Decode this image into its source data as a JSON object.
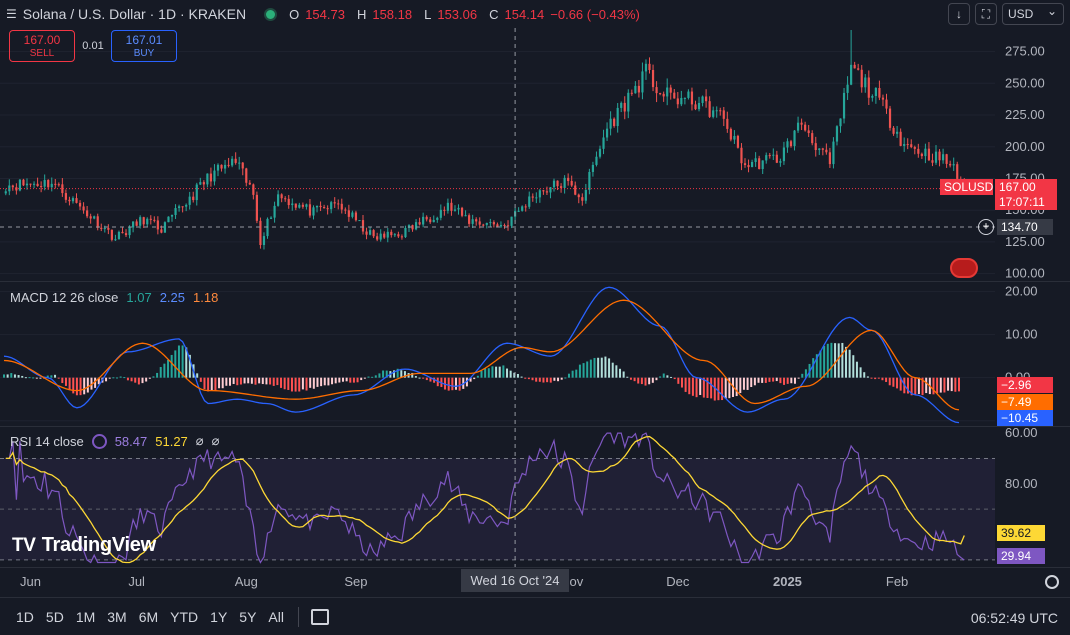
{
  "header": {
    "menu_icon": "hamburger-icon",
    "title": "Solana / U.S. Dollar · 1D · KRAKEN",
    "open_label": "O",
    "open": "154.73",
    "high_label": "H",
    "high": "158.18",
    "low_label": "L",
    "low": "153.06",
    "close_label": "C",
    "close": "154.14",
    "change": "−0.66 (−0.43%)"
  },
  "trade": {
    "sell_price": "167.00",
    "sell_label": "SELL",
    "spread": "0.01",
    "buy_price": "167.01",
    "buy_label": "BUY"
  },
  "toolbar": {
    "currency": "USD",
    "download_icon": "download-icon",
    "fullscreen_icon": "fullscreen-icon"
  },
  "indicators": {
    "macd_name": "MACD 12 26 close",
    "macd_hist": "1.07",
    "macd_line": "2.25",
    "macd_signal": "1.18",
    "rsi_name": "RSI 14 close",
    "rsi_value": "58.47",
    "rsi_ma": "51.27",
    "rsi_extra1": "⌀",
    "rsi_extra2": "⌀"
  },
  "price_labels": {
    "symbol": "SOLUSD",
    "last": "167.00",
    "countdown": "17:07:11",
    "crosshair": "134.70",
    "macd_hist": "−2.96",
    "macd_signal": "−7.49",
    "macd_line": "−10.45",
    "rsi_ma": "39.62",
    "rsi": "29.94"
  },
  "crosshair_date": "Wed 16 Oct '24",
  "brand": "TradingView",
  "timeframes": [
    "1D",
    "5D",
    "1M",
    "3M",
    "6M",
    "YTD",
    "1Y",
    "5Y",
    "All"
  ],
  "clock": "06:52:49 UTC",
  "colors": {
    "up": "#26a69a",
    "down": "#ef5350",
    "macd_line": "#2962ff",
    "macd_signal": "#ff6d00",
    "rsi": "#7e57c2",
    "rsi_ma": "#fdd835",
    "bg": "#161a25"
  },
  "chart_data": [
    {
      "type": "candlestick",
      "title": "Solana / U.S. Dollar · 1D · KRAKEN",
      "x_ticks": [
        "Jun",
        "Jul",
        "Aug",
        "Sep",
        "Oct",
        "Nov",
        "Dec",
        "2025",
        "Feb"
      ],
      "y_ticks": [
        100,
        125,
        150,
        175,
        200,
        225,
        250,
        275
      ],
      "ylim": [
        95,
        292
      ],
      "axis_labels": [
        "100.00",
        "125.00",
        "150.00",
        "175.00",
        "200.00",
        "225.00",
        "250.00",
        "275.00"
      ],
      "anchors": [
        {
          "date": "2024-05-27",
          "close": 170
        },
        {
          "date": "2024-06-07",
          "close": 172
        },
        {
          "date": "2024-06-25",
          "close": 128
        },
        {
          "date": "2024-07-03",
          "close": 143
        },
        {
          "date": "2024-07-08",
          "close": 135
        },
        {
          "date": "2024-07-22",
          "close": 178
        },
        {
          "date": "2024-07-29",
          "close": 188
        },
        {
          "date": "2024-08-03",
          "close": 162
        },
        {
          "date": "2024-08-05",
          "close": 126
        },
        {
          "date": "2024-08-10",
          "close": 162
        },
        {
          "date": "2024-08-20",
          "close": 148
        },
        {
          "date": "2024-08-27",
          "close": 155
        },
        {
          "date": "2024-09-06",
          "close": 128
        },
        {
          "date": "2024-09-14",
          "close": 132
        },
        {
          "date": "2024-09-27",
          "close": 153
        },
        {
          "date": "2024-10-03",
          "close": 142
        },
        {
          "date": "2024-10-13",
          "close": 138
        },
        {
          "date": "2024-10-22",
          "close": 164
        },
        {
          "date": "2024-10-30",
          "close": 172
        },
        {
          "date": "2024-11-04",
          "close": 160
        },
        {
          "date": "2024-11-11",
          "close": 215
        },
        {
          "date": "2024-11-22",
          "close": 258
        },
        {
          "date": "2024-11-27",
          "close": 240
        },
        {
          "date": "2024-12-07",
          "close": 235
        },
        {
          "date": "2024-12-14",
          "close": 222
        },
        {
          "date": "2024-12-20",
          "close": 185
        },
        {
          "date": "2024-12-30",
          "close": 192
        },
        {
          "date": "2025-01-05",
          "close": 219
        },
        {
          "date": "2025-01-13",
          "close": 186
        },
        {
          "date": "2025-01-19",
          "close": 262
        },
        {
          "date": "2025-01-27",
          "close": 236
        },
        {
          "date": "2025-02-03",
          "close": 202
        },
        {
          "date": "2025-02-09",
          "close": 195
        },
        {
          "date": "2025-02-16",
          "close": 187
        },
        {
          "date": "2025-02-20",
          "close": 167
        }
      ],
      "spike_high": {
        "date": "2025-01-19",
        "high": 292
      },
      "last_close": 167.0
    },
    {
      "type": "line",
      "title": "MACD 12 26 close",
      "y_ticks": [
        -10,
        0,
        10,
        20
      ],
      "axis_labels": [
        "0.00",
        "10.00",
        "20.00"
      ],
      "ylim": [
        -11,
        22
      ],
      "series": [
        {
          "name": "MACD",
          "anchors": [
            [
              0,
              5
            ],
            [
              12,
              0
            ],
            [
              20,
              -7
            ],
            [
              34,
              6
            ],
            [
              48,
              9
            ],
            [
              56,
              -6
            ],
            [
              64,
              -5
            ],
            [
              72,
              -6
            ],
            [
              80,
              -8
            ],
            [
              96,
              -4
            ],
            [
              110,
              2
            ],
            [
              124,
              -2
            ],
            [
              138,
              8
            ],
            [
              150,
              5
            ],
            [
              166,
              21
            ],
            [
              180,
              12
            ],
            [
              190,
              0
            ],
            [
              204,
              -8
            ],
            [
              214,
              -5
            ],
            [
              232,
              14
            ],
            [
              238,
              11
            ],
            [
              250,
              -4
            ],
            [
              262,
              -10.45
            ]
          ]
        },
        {
          "name": "Signal",
          "anchors": [
            [
              0,
              4
            ],
            [
              20,
              -3
            ],
            [
              38,
              8
            ],
            [
              56,
              -3
            ],
            [
              80,
              -5
            ],
            [
              98,
              -3
            ],
            [
              114,
              1
            ],
            [
              128,
              1
            ],
            [
              142,
              7
            ],
            [
              150,
              6
            ],
            [
              170,
              18
            ],
            [
              192,
              4
            ],
            [
              206,
              -6
            ],
            [
              220,
              -2
            ],
            [
              238,
              11
            ],
            [
              250,
              0
            ],
            [
              262,
              -7.49
            ]
          ]
        }
      ],
      "histogram": "MACD - Signal"
    },
    {
      "type": "line",
      "title": "RSI 14 close",
      "y_ticks": [
        30,
        60,
        80
      ],
      "axis_labels": [
        "60.00",
        "80.00"
      ],
      "ylim": [
        30,
        80
      ],
      "bands": [
        30,
        70
      ],
      "series": [
        {
          "name": "RSI",
          "last": 29.94
        },
        {
          "name": "RSI-based MA",
          "last": 39.62
        }
      ]
    }
  ]
}
